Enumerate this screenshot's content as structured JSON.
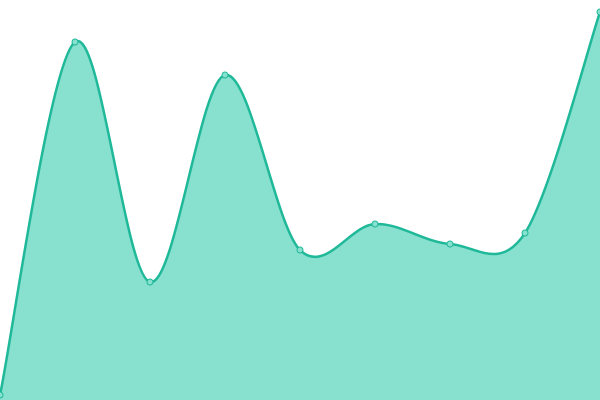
{
  "chart_data": {
    "type": "area",
    "categories": [
      null,
      null,
      null,
      null,
      null,
      null,
      null,
      null,
      null
    ],
    "values": [
      5,
      358,
      118,
      325,
      150,
      176,
      156,
      167,
      388
    ],
    "ylim": [
      0,
      400
    ],
    "fill_color": "#88e0cf",
    "line_color": "#1fb899",
    "markers": true
  }
}
